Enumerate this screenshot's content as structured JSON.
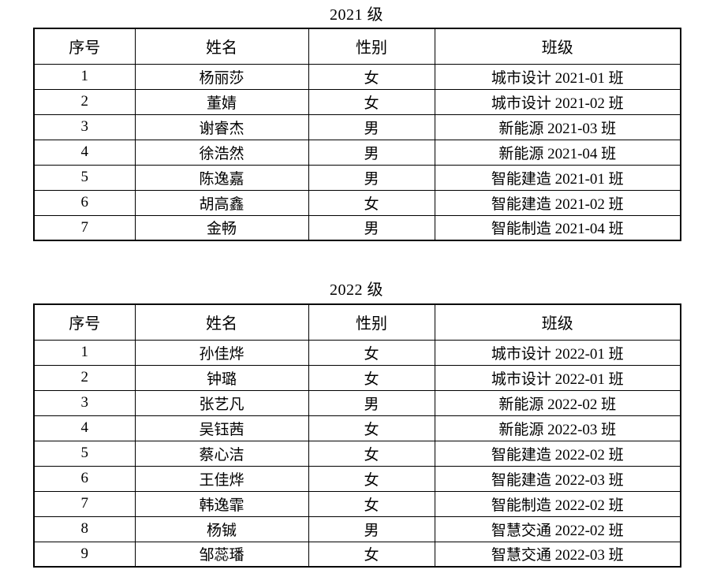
{
  "page": {
    "background_color": "#ffffff",
    "text_color": "#000000",
    "border_color": "#000000"
  },
  "tables": [
    {
      "title": "2021 级",
      "headers": [
        "序号",
        "姓名",
        "性别",
        "班级"
      ],
      "rows": [
        [
          "1",
          "杨丽莎",
          "女",
          "城市设计 2021-01 班"
        ],
        [
          "2",
          "董婧",
          "女",
          "城市设计 2021-02 班"
        ],
        [
          "3",
          "谢睿杰",
          "男",
          "新能源 2021-03 班"
        ],
        [
          "4",
          "徐浩然",
          "男",
          "新能源 2021-04 班"
        ],
        [
          "5",
          "陈逸嘉",
          "男",
          "智能建造 2021-01 班"
        ],
        [
          "6",
          "胡高鑫",
          "女",
          "智能建造 2021-02 班"
        ],
        [
          "7",
          "金畅",
          "男",
          "智能制造 2021-04 班"
        ]
      ]
    },
    {
      "title": "2022 级",
      "headers": [
        "序号",
        "姓名",
        "性别",
        "班级"
      ],
      "rows": [
        [
          "1",
          "孙佳烨",
          "女",
          "城市设计 2022-01 班"
        ],
        [
          "2",
          "钟璐",
          "女",
          "城市设计 2022-01 班"
        ],
        [
          "3",
          "张艺凡",
          "男",
          "新能源 2022-02 班"
        ],
        [
          "4",
          "吴钰茜",
          "女",
          "新能源 2022-03 班"
        ],
        [
          "5",
          "蔡心洁",
          "女",
          "智能建造 2022-02 班"
        ],
        [
          "6",
          "王佳烨",
          "女",
          "智能建造 2022-03 班"
        ],
        [
          "7",
          "韩逸霏",
          "女",
          "智能制造 2022-02 班"
        ],
        [
          "8",
          "杨铖",
          "男",
          "智慧交通 2022-02 班"
        ],
        [
          "9",
          "邹蕊璠",
          "女",
          "智慧交通 2022-03 班"
        ]
      ]
    }
  ]
}
